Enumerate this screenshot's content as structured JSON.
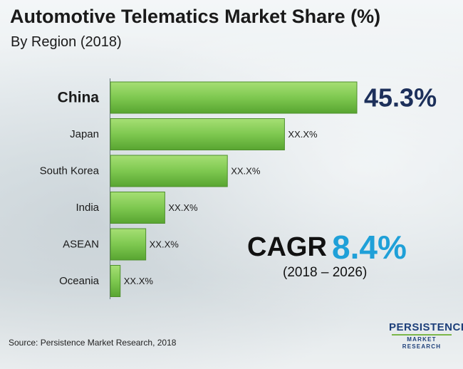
{
  "title": "Automotive Telematics Market Share (%)",
  "subtitle": "By Region (2018)",
  "chart_data": {
    "type": "bar",
    "orientation": "horizontal",
    "title": "Automotive Telematics Market Share (%)",
    "subtitle": "By Region (2018)",
    "categories": [
      "China",
      "Japan",
      "South Korea",
      "India",
      "ASEAN",
      "Oceania"
    ],
    "values": [
      45.3,
      32,
      21.5,
      10,
      6.5,
      1.8
    ],
    "value_labels": [
      "45.3%",
      "XX.X%",
      "XX.X%",
      "XX.X%",
      "XX.X%",
      "XX.X%"
    ],
    "xlim": [
      0,
      45.3
    ],
    "grid": false,
    "bar_color": "#7ec850",
    "highlight_category": "China",
    "highlight_label_color": "#1c2f5a"
  },
  "cagr": {
    "label": "CAGR",
    "value": "8.4%",
    "period": "(2018 – 2026)",
    "value_color": "#1fa0d8"
  },
  "source": "Source: Persistence Market Research, 2018",
  "logo": {
    "main": "PERSISTENCE",
    "sub": "MARKET RESEARCH"
  }
}
